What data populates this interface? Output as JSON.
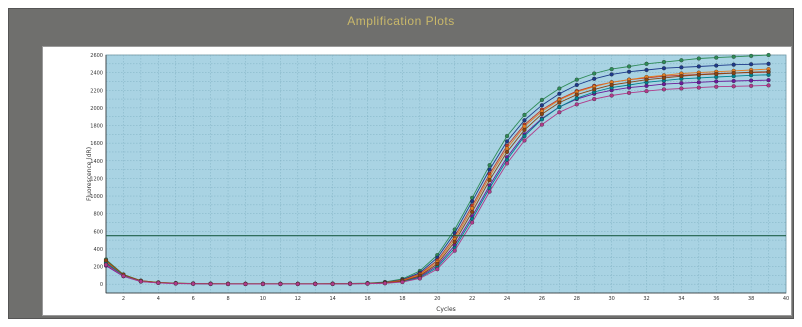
{
  "window": {
    "title": "Amplification Plots"
  },
  "chart_data": {
    "type": "line",
    "title": "Amplification Plots",
    "xlabel": "Cycles",
    "ylabel": "Fluorescence (dR)",
    "xlim": [
      1,
      40
    ],
    "ylim": [
      -100,
      2600
    ],
    "x_ticks": [
      2,
      4,
      6,
      8,
      10,
      12,
      14,
      16,
      18,
      20,
      22,
      24,
      26,
      28,
      30,
      32,
      34,
      36,
      38,
      40
    ],
    "y_ticks": [
      0,
      200,
      400,
      600,
      800,
      1000,
      1200,
      1400,
      1600,
      1800,
      2000,
      2200,
      2400,
      2600
    ],
    "grid": true,
    "threshold": 550,
    "background_color": "#a9d3e3",
    "threshold_color": "#1f5f4a",
    "series": [
      {
        "color": "#2e8b57",
        "values": [
          280,
          110,
          40,
          20,
          12,
          8,
          6,
          5,
          5,
          5,
          5,
          5,
          5,
          6,
          8,
          12,
          25,
          60,
          150,
          330,
          620,
          980,
          1350,
          1680,
          1920,
          2090,
          2220,
          2320,
          2390,
          2440,
          2470,
          2500,
          2520,
          2540,
          2560,
          2570,
          2580,
          2590,
          2600
        ]
      },
      {
        "color": "#1e3a8a",
        "values": [
          250,
          100,
          35,
          18,
          10,
          7,
          5,
          4,
          4,
          4,
          4,
          4,
          4,
          5,
          7,
          10,
          20,
          50,
          130,
          300,
          580,
          940,
          1300,
          1620,
          1860,
          2030,
          2160,
          2260,
          2330,
          2380,
          2410,
          2430,
          2450,
          2460,
          2470,
          2480,
          2490,
          2495,
          2500
        ]
      },
      {
        "color": "#c0392b",
        "values": [
          230,
          95,
          33,
          16,
          9,
          6,
          4,
          3,
          3,
          3,
          3,
          3,
          3,
          4,
          6,
          9,
          18,
          45,
          115,
          270,
          540,
          890,
          1250,
          1570,
          1810,
          1980,
          2100,
          2190,
          2250,
          2290,
          2320,
          2340,
          2360,
          2370,
          2380,
          2390,
          2395,
          2400,
          2405
        ]
      },
      {
        "color": "#e67e22",
        "values": [
          260,
          105,
          38,
          19,
          11,
          7,
          5,
          4,
          4,
          4,
          4,
          4,
          4,
          5,
          7,
          9,
          16,
          40,
          105,
          250,
          510,
          860,
          1220,
          1540,
          1790,
          1960,
          2090,
          2180,
          2240,
          2290,
          2320,
          2350,
          2370,
          2390,
          2400,
          2410,
          2420,
          2430,
          2440
        ]
      },
      {
        "color": "#6a1b9a",
        "values": [
          210,
          90,
          30,
          15,
          8,
          5,
          3,
          2,
          2,
          2,
          2,
          2,
          2,
          3,
          4,
          7,
          13,
          32,
          85,
          210,
          440,
          770,
          1120,
          1440,
          1700,
          1880,
          2010,
          2100,
          2160,
          2200,
          2230,
          2250,
          2270,
          2280,
          2290,
          2300,
          2305,
          2310,
          2315
        ]
      },
      {
        "color": "#00838f",
        "values": [
          240,
          98,
          34,
          17,
          10,
          6,
          4,
          3,
          3,
          3,
          3,
          3,
          3,
          4,
          5,
          7,
          12,
          28,
          75,
          190,
          410,
          740,
          1090,
          1410,
          1680,
          1870,
          2010,
          2110,
          2180,
          2230,
          2260,
          2290,
          2310,
          2330,
          2340,
          2350,
          2360,
          2370,
          2375
        ]
      },
      {
        "color": "#8b4513",
        "values": [
          270,
          108,
          39,
          19,
          11,
          7,
          5,
          4,
          4,
          4,
          4,
          4,
          4,
          5,
          6,
          8,
          14,
          35,
          95,
          230,
          480,
          820,
          1180,
          1500,
          1750,
          1930,
          2060,
          2150,
          2210,
          2260,
          2290,
          2320,
          2340,
          2360,
          2375,
          2385,
          2395,
          2405,
          2410
        ]
      },
      {
        "color": "#b03a8a",
        "values": [
          220,
          92,
          31,
          15,
          8,
          5,
          3,
          2,
          2,
          2,
          2,
          2,
          2,
          3,
          4,
          6,
          10,
          24,
          65,
          170,
          380,
          700,
          1050,
          1370,
          1630,
          1810,
          1950,
          2040,
          2100,
          2140,
          2170,
          2190,
          2210,
          2220,
          2230,
          2240,
          2245,
          2250,
          2255
        ]
      }
    ]
  }
}
